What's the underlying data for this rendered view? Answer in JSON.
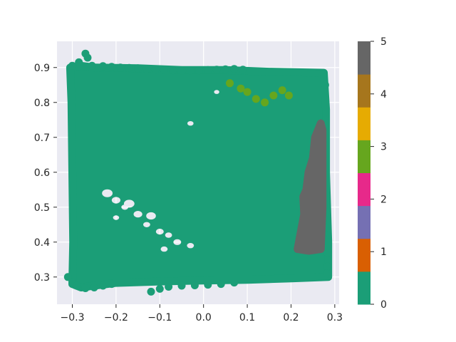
{
  "chart_data": {
    "type": "scatter",
    "title": "",
    "xlabel": "",
    "ylabel": "",
    "xlim": [
      -0.335,
      0.31
    ],
    "ylim": [
      0.222,
      0.975
    ],
    "grid": true,
    "x_ticks": [
      -0.3,
      -0.2,
      -0.1,
      0.0,
      0.1,
      0.2,
      0.3
    ],
    "x_tick_labels": [
      "−0.3",
      "−0.2",
      "−0.1",
      "0.0",
      "0.1",
      "0.2",
      "0.3"
    ],
    "y_ticks": [
      0.3,
      0.4,
      0.5,
      0.6,
      0.7,
      0.8,
      0.9
    ],
    "y_tick_labels": [
      "0.3",
      "0.4",
      "0.5",
      "0.6",
      "0.7",
      "0.8",
      "0.9"
    ],
    "colormap": {
      "name": "Dark2",
      "range": [
        0,
        5
      ],
      "ticks": [
        0,
        1,
        2,
        3,
        4,
        5
      ],
      "tick_labels": [
        "0",
        "1",
        "2",
        "3",
        "4",
        "5"
      ],
      "colors": [
        "#1b9e77",
        "#d95f02",
        "#7570b3",
        "#e7298a",
        "#66a61e",
        "#e6ab02",
        "#a6761d",
        "#666666"
      ]
    },
    "series": [
      {
        "class": 0,
        "color": "#1b9e77",
        "region_polygon": [
          [
            -0.305,
            0.9
          ],
          [
            -0.28,
            0.905
          ],
          [
            -0.25,
            0.9
          ],
          [
            -0.15,
            0.898
          ],
          [
            -0.05,
            0.893
          ],
          [
            0.05,
            0.893
          ],
          [
            0.15,
            0.888
          ],
          [
            0.275,
            0.885
          ],
          [
            0.28,
            0.78
          ],
          [
            0.28,
            0.6
          ],
          [
            0.285,
            0.4
          ],
          [
            0.285,
            0.3
          ],
          [
            0.2,
            0.296
          ],
          [
            0.1,
            0.292
          ],
          [
            0.0,
            0.29
          ],
          [
            -0.1,
            0.287
          ],
          [
            -0.2,
            0.283
          ],
          [
            -0.25,
            0.275
          ],
          [
            -0.28,
            0.27
          ],
          [
            -0.3,
            0.28
          ],
          [
            -0.298,
            0.4
          ],
          [
            -0.3,
            0.6
          ],
          [
            -0.302,
            0.8
          ]
        ],
        "holes": [
          [
            -0.22,
            0.54,
            0.012
          ],
          [
            -0.2,
            0.52,
            0.01
          ],
          [
            -0.17,
            0.51,
            0.012
          ],
          [
            -0.15,
            0.48,
            0.01
          ],
          [
            -0.12,
            0.475,
            0.011
          ],
          [
            -0.13,
            0.45,
            0.008
          ],
          [
            -0.1,
            0.43,
            0.009
          ],
          [
            -0.08,
            0.42,
            0.008
          ],
          [
            -0.06,
            0.4,
            0.009
          ],
          [
            -0.03,
            0.39,
            0.008
          ],
          [
            -0.09,
            0.38,
            0.008
          ],
          [
            -0.2,
            0.47,
            0.007
          ],
          [
            0.03,
            0.83,
            0.006
          ],
          [
            -0.03,
            0.74,
            0.007
          ],
          [
            -0.18,
            0.5,
            0.008
          ]
        ],
        "points": [
          [
            -0.31,
            0.3
          ],
          [
            -0.3,
            0.285
          ],
          [
            -0.29,
            0.275
          ],
          [
            -0.27,
            0.268
          ],
          [
            -0.25,
            0.27
          ],
          [
            -0.23,
            0.275
          ],
          [
            -0.21,
            0.28
          ],
          [
            -0.12,
            0.258
          ],
          [
            -0.1,
            0.266
          ],
          [
            -0.08,
            0.272
          ],
          [
            -0.05,
            0.275
          ],
          [
            -0.02,
            0.276
          ],
          [
            0.01,
            0.278
          ],
          [
            0.04,
            0.28
          ],
          [
            0.07,
            0.284
          ],
          [
            -0.3,
            0.905
          ],
          [
            -0.285,
            0.915
          ],
          [
            -0.27,
            0.94
          ],
          [
            -0.265,
            0.928
          ],
          [
            -0.255,
            0.905
          ],
          [
            -0.23,
            0.904
          ],
          [
            -0.21,
            0.902
          ],
          [
            -0.19,
            0.9
          ],
          [
            -0.17,
            0.899
          ],
          [
            -0.15,
            0.898
          ],
          [
            -0.13,
            0.896
          ],
          [
            -0.11,
            0.894
          ],
          [
            -0.09,
            0.893
          ],
          [
            -0.07,
            0.892
          ],
          [
            -0.05,
            0.891
          ],
          [
            -0.03,
            0.891
          ],
          [
            -0.01,
            0.892
          ],
          [
            0.01,
            0.893
          ],
          [
            0.03,
            0.894
          ],
          [
            0.05,
            0.895
          ],
          [
            0.07,
            0.896
          ],
          [
            0.09,
            0.894
          ],
          [
            0.275,
            0.88
          ],
          [
            0.278,
            0.85
          ],
          [
            0.28,
            0.6
          ],
          [
            0.282,
            0.42
          ],
          [
            0.283,
            0.37
          ],
          [
            0.283,
            0.33
          ],
          [
            0.282,
            0.31
          ]
        ]
      },
      {
        "class": 3,
        "color": "#66a61e",
        "points": [
          [
            0.06,
            0.855
          ],
          [
            0.085,
            0.84
          ],
          [
            0.1,
            0.83
          ],
          [
            0.12,
            0.81
          ],
          [
            0.14,
            0.8
          ],
          [
            0.16,
            0.82
          ],
          [
            0.18,
            0.835
          ],
          [
            0.195,
            0.82
          ]
        ]
      },
      {
        "class": 5,
        "color": "#666666",
        "region_polygon": [
          [
            0.268,
            0.74
          ],
          [
            0.255,
            0.7
          ],
          [
            0.25,
            0.64
          ],
          [
            0.24,
            0.6
          ],
          [
            0.235,
            0.55
          ],
          [
            0.228,
            0.53
          ],
          [
            0.23,
            0.48
          ],
          [
            0.224,
            0.44
          ],
          [
            0.215,
            0.38
          ],
          [
            0.24,
            0.375
          ],
          [
            0.268,
            0.38
          ],
          [
            0.272,
            0.5
          ],
          [
            0.272,
            0.72
          ]
        ]
      }
    ]
  }
}
